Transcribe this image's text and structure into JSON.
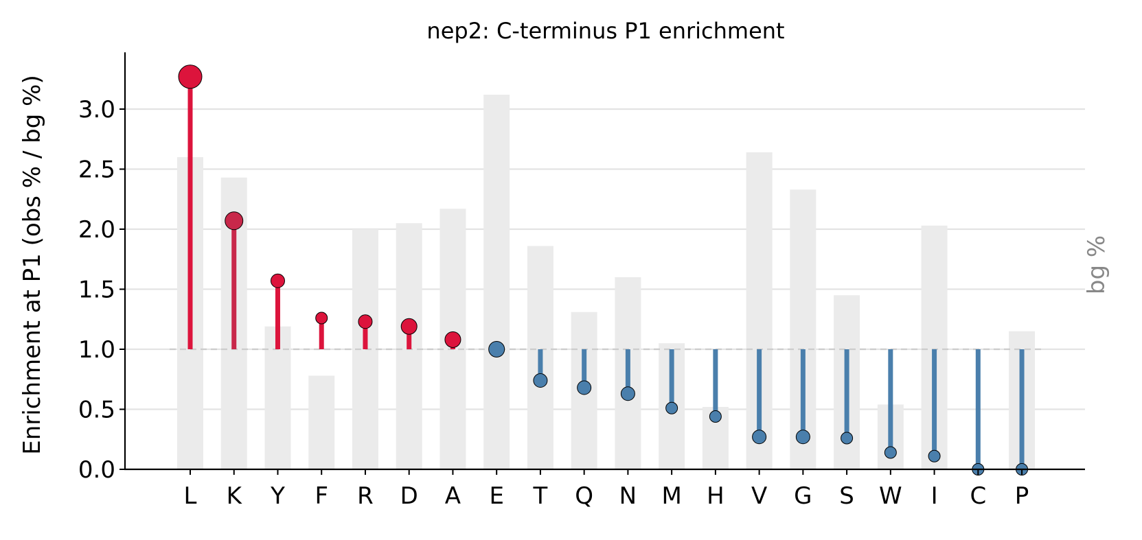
{
  "chart_data": {
    "type": "lollipop",
    "title": "nep2: C-terminus P1 enrichment",
    "ylabel": "Enrichment at P1 (obs % / bg %)",
    "y2label": "bg %",
    "ylim": [
      0,
      3.45
    ],
    "yticks": [
      "0.0",
      "0.5",
      "1.0",
      "1.5",
      "2.0",
      "2.5",
      "3.0"
    ],
    "baseline": 1.0,
    "grid": "horizontal",
    "categories": [
      "L",
      "K",
      "Y",
      "F",
      "R",
      "D",
      "A",
      "E",
      "T",
      "Q",
      "N",
      "M",
      "H",
      "V",
      "G",
      "S",
      "W",
      "I",
      "C",
      "P"
    ],
    "enrichment": [
      3.27,
      2.07,
      1.57,
      1.26,
      1.23,
      1.19,
      1.08,
      1.0,
      0.74,
      0.68,
      0.63,
      0.51,
      0.44,
      0.27,
      0.27,
      0.26,
      0.14,
      0.11,
      0.0,
      0.0
    ],
    "bg_bar_heights": [
      2.6,
      2.43,
      1.19,
      0.78,
      2.0,
      2.05,
      2.17,
      3.12,
      1.86,
      1.31,
      1.6,
      1.05,
      0.52,
      2.64,
      2.33,
      1.45,
      0.54,
      2.03,
      0.0,
      1.15
    ],
    "marker_size_rank": [
      5,
      4,
      2,
      1,
      2,
      3,
      3,
      3,
      2,
      2,
      2,
      1,
      1,
      2,
      2,
      1,
      1,
      1,
      1,
      1
    ],
    "colors": {
      "enriched": "#dc143c",
      "enriched_dark": "#c8284a",
      "depleted": "#4a7fac",
      "bg_bar": "#ebebeb",
      "grid": "#e3e3e3",
      "baseline": "#cccccc",
      "axis": "#000000"
    }
  }
}
